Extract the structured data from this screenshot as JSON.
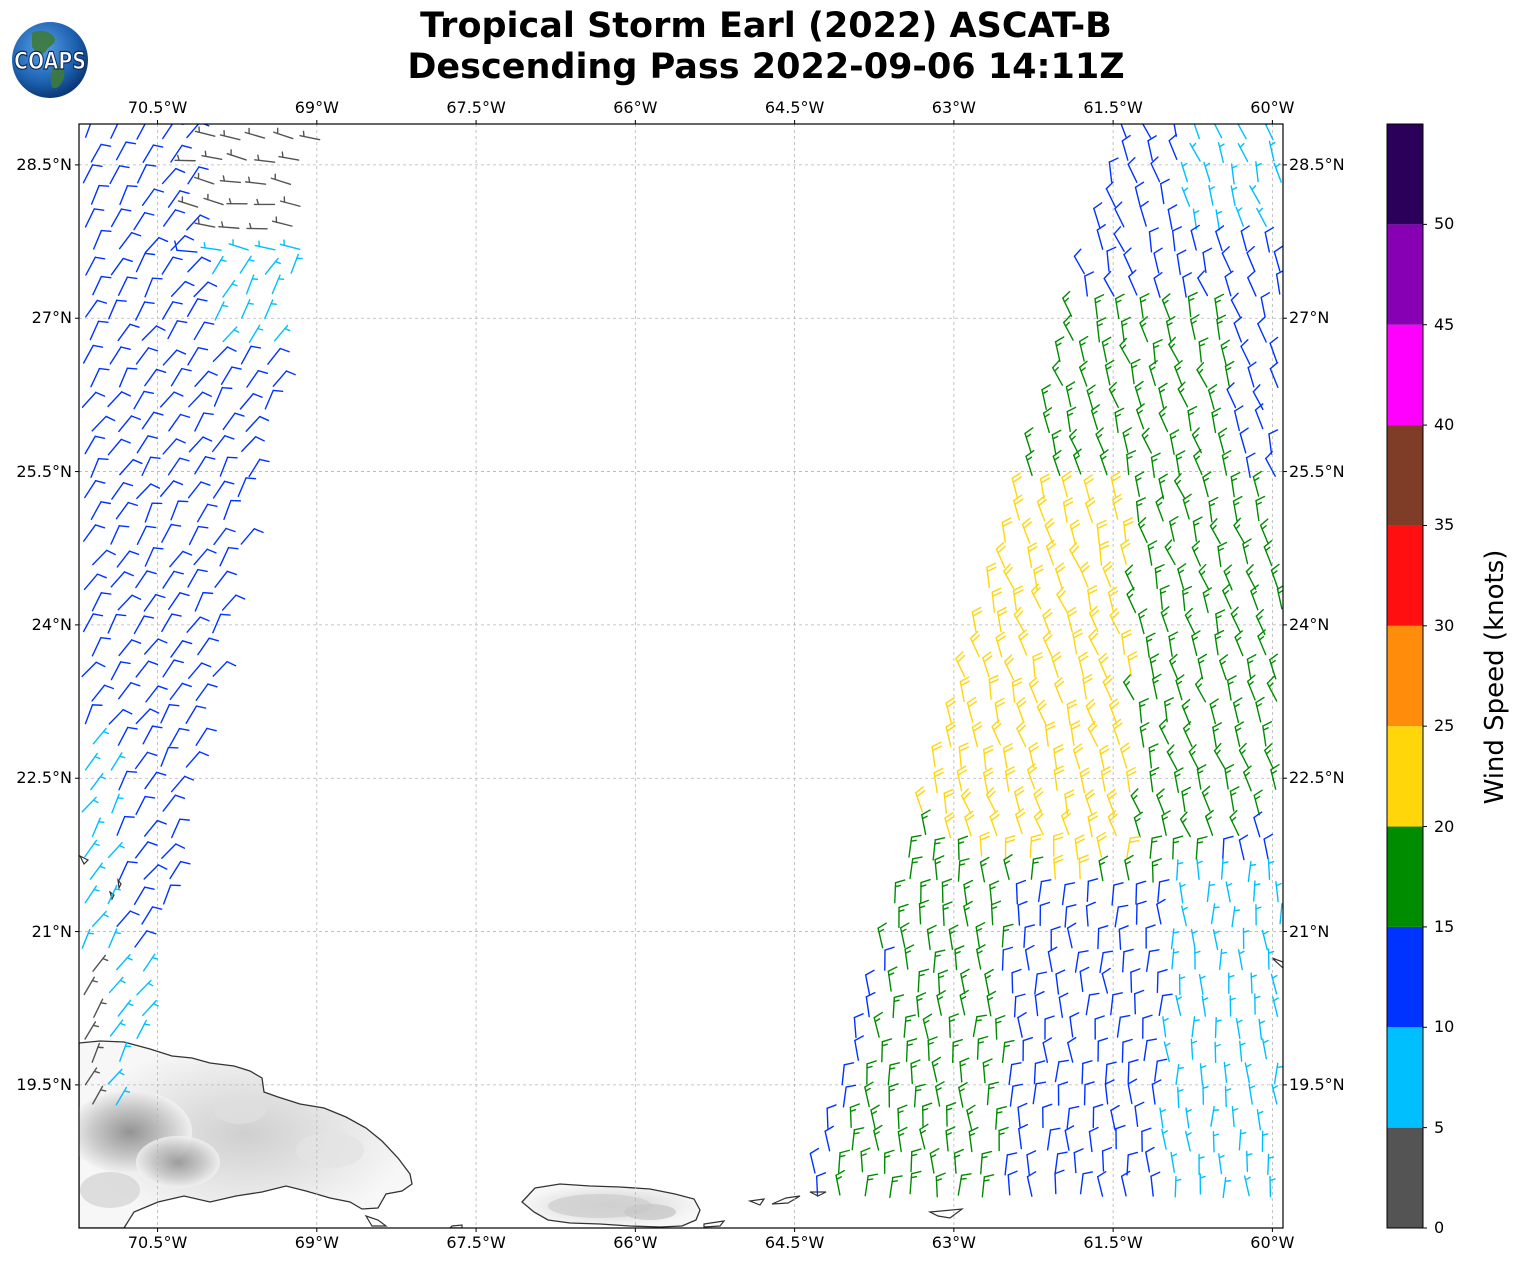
{
  "title": {
    "line1": "Tropical Storm Earl (2022) ASCAT-B",
    "line2": "Descending Pass 2022-09-06 14:11Z"
  },
  "logo": {
    "text": "COAPS",
    "icon": "globe-icon"
  },
  "map": {
    "lon_range": [
      -71.24,
      -59.9
    ],
    "lat_range": [
      18.1,
      28.9
    ],
    "lon_ticks": [
      "70.5°W",
      "69°W",
      "67.5°W",
      "66°W",
      "64.5°W",
      "63°W",
      "61.5°W",
      "60°W"
    ],
    "lon_tick_values": [
      -70.5,
      -69,
      -67.5,
      -66,
      -64.5,
      -63,
      -61.5,
      -60
    ],
    "lat_ticks": [
      "28.5°N",
      "27°N",
      "25.5°N",
      "24°N",
      "22.5°N",
      "21°N",
      "19.5°N"
    ],
    "lat_tick_values": [
      28.5,
      27,
      25.5,
      24,
      22.5,
      21,
      19.5
    ],
    "grid": true,
    "land_color": "#ffffff",
    "coastline_color": "#333333",
    "barb_style": "wind barbs colored by speed"
  },
  "colorbar": {
    "label": "Wind Speed (knots)",
    "ticks": [
      "0",
      "5",
      "10",
      "15",
      "20",
      "25",
      "30",
      "35",
      "40",
      "45",
      "50"
    ],
    "bins": [
      {
        "min": 0,
        "max": 5,
        "color": "#545454"
      },
      {
        "min": 5,
        "max": 10,
        "color": "#00bfff"
      },
      {
        "min": 10,
        "max": 15,
        "color": "#0033ff"
      },
      {
        "min": 15,
        "max": 20,
        "color": "#008c00"
      },
      {
        "min": 20,
        "max": 25,
        "color": "#ffd60a"
      },
      {
        "min": 25,
        "max": 30,
        "color": "#ff8c0a"
      },
      {
        "min": 30,
        "max": 35,
        "color": "#ff0f0f"
      },
      {
        "min": 35,
        "max": 40,
        "color": "#7f3d27"
      },
      {
        "min": 40,
        "max": 45,
        "color": "#ff00ff"
      },
      {
        "min": 45,
        "max": 50,
        "color": "#8800b3"
      },
      {
        "min": 50,
        "max": 55,
        "color": "#2b005a"
      }
    ]
  }
}
